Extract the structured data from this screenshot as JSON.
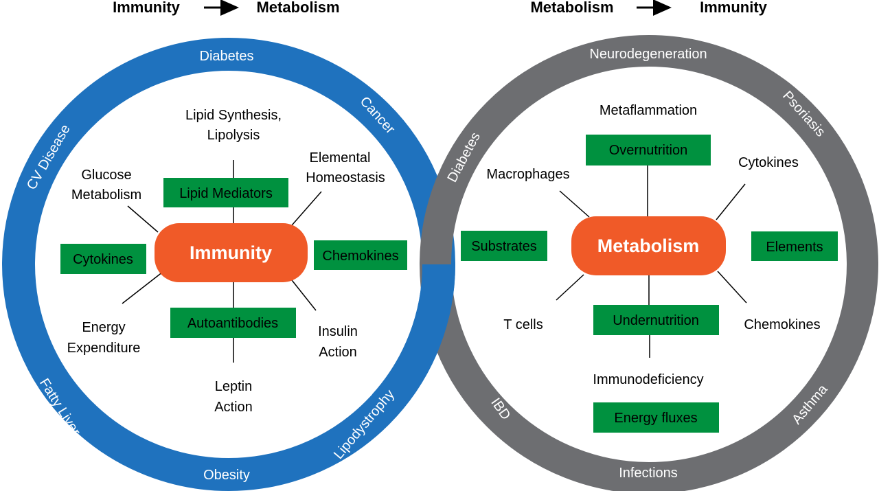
{
  "colors": {
    "immunity_ring": "#1f72be",
    "metabolism_ring": "#6d6e71",
    "box": "#00913f",
    "hub": "#f05a28"
  },
  "header": {
    "left": {
      "from": "Immunity",
      "to": "Metabolism"
    },
    "right": {
      "from": "Metabolism",
      "to": "Immunity"
    }
  },
  "left_circle": {
    "hub": "Immunity",
    "ring_labels": [
      "Diabetes",
      "Cancer",
      "CV Disease",
      "Fatty Liver",
      "Obesity",
      "Lipodystrophy"
    ],
    "boxes": [
      "Lipid Mediators",
      "Cytokines",
      "Chemokines",
      "Autoantibodies"
    ],
    "labels": {
      "lipid": [
        "Lipid Synthesis,",
        "Lipolysis"
      ],
      "glucose": [
        "Glucose",
        "Metabolism"
      ],
      "elemental": [
        "Elemental",
        "Homeostasis"
      ],
      "energy": [
        "Energy",
        "Expenditure"
      ],
      "insulin": [
        "Insulin",
        "Action"
      ],
      "leptin": [
        "Leptin",
        "Action"
      ]
    }
  },
  "right_circle": {
    "hub": "Metabolism",
    "ring_labels": [
      "Neurodegeneration",
      "Psoriasis",
      "Diabetes",
      "IBD",
      "Infections",
      "Asthma"
    ],
    "boxes": [
      "Overnutrition",
      "Substrates",
      "Elements",
      "Undernutrition",
      "Energy fluxes"
    ],
    "labels": [
      "Metaflammation",
      "Macrophages",
      "Cytokines",
      "T cells",
      "Chemokines",
      "Immunodeficiency"
    ]
  }
}
